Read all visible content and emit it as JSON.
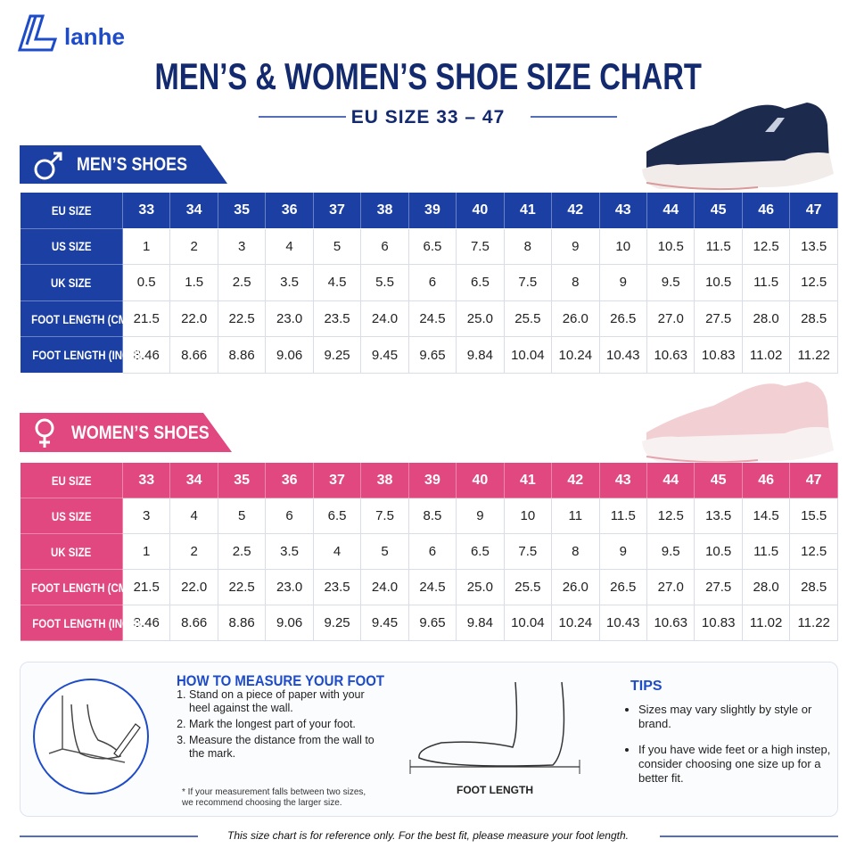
{
  "brand": "lanhe",
  "title": "MEN’S & WOMEN’S SHOE SIZE CHART",
  "subtitle": "EU SIZE 33 – 47",
  "men": {
    "label": "MEN’S SHOES",
    "rows": [
      {
        "header": "EU SIZE",
        "cells": [
          "33",
          "34",
          "35",
          "36",
          "37",
          "38",
          "39",
          "40",
          "41",
          "42",
          "43",
          "44",
          "45",
          "46",
          "47"
        ]
      },
      {
        "header": "US SIZE",
        "cells": [
          "1",
          "2",
          "3",
          "4",
          "5",
          "6",
          "6.5",
          "7.5",
          "8",
          "9",
          "10",
          "10.5",
          "11.5",
          "12.5",
          "13.5"
        ]
      },
      {
        "header": "UK SIZE",
        "cells": [
          "0.5",
          "1.5",
          "2.5",
          "3.5",
          "4.5",
          "5.5",
          "6",
          "6.5",
          "7.5",
          "8",
          "9",
          "9.5",
          "10.5",
          "11.5",
          "12.5"
        ]
      },
      {
        "header": "FOOT LENGTH (CM)",
        "cells": [
          "21.5",
          "22.0",
          "22.5",
          "23.0",
          "23.5",
          "24.0",
          "24.5",
          "25.0",
          "25.5",
          "26.0",
          "26.5",
          "27.0",
          "27.5",
          "28.0",
          "28.5"
        ]
      },
      {
        "header": "FOOT LENGTH (INCH)",
        "cells": [
          "8.46",
          "8.66",
          "8.86",
          "9.06",
          "9.25",
          "9.45",
          "9.65",
          "9.84",
          "10.04",
          "10.24",
          "10.43",
          "10.63",
          "10.83",
          "11.02",
          "11.22"
        ]
      }
    ]
  },
  "women": {
    "label": "WOMEN’S SHOES",
    "rows": [
      {
        "header": "EU SIZE",
        "cells": [
          "33",
          "34",
          "35",
          "36",
          "37",
          "38",
          "39",
          "40",
          "41",
          "42",
          "43",
          "44",
          "45",
          "46",
          "47"
        ]
      },
      {
        "header": "US SIZE",
        "cells": [
          "3",
          "4",
          "5",
          "6",
          "6.5",
          "7.5",
          "8.5",
          "9",
          "10",
          "11",
          "11.5",
          "12.5",
          "13.5",
          "14.5",
          "15.5"
        ]
      },
      {
        "header": "UK SIZE",
        "cells": [
          "1",
          "2",
          "2.5",
          "3.5",
          "4",
          "5",
          "6",
          "6.5",
          "7.5",
          "8",
          "9",
          "9.5",
          "10.5",
          "11.5",
          "12.5"
        ]
      },
      {
        "header": "FOOT LENGTH (CM)",
        "cells": [
          "21.5",
          "22.0",
          "22.5",
          "23.0",
          "23.5",
          "24.0",
          "24.5",
          "25.0",
          "25.5",
          "26.0",
          "26.5",
          "27.0",
          "27.5",
          "28.0",
          "28.5"
        ]
      },
      {
        "header": "FOOT LENGTH (INCH)",
        "cells": [
          "8.46",
          "8.66",
          "8.86",
          "9.06",
          "9.25",
          "9.45",
          "9.65",
          "9.84",
          "10.04",
          "10.24",
          "10.43",
          "10.63",
          "10.83",
          "11.02",
          "11.22"
        ]
      }
    ]
  },
  "measure": {
    "title": "HOW TO MEASURE YOUR FOOT",
    "steps": [
      "Stand on a piece of paper with your heel against the wall.",
      "Mark the longest part of your foot.",
      "Measure the distance from the wall to the mark."
    ],
    "note": "* If your measurement falls between two sizes, we recommend choosing the larger size.",
    "foot_label": "FOOT LENGTH"
  },
  "tips": {
    "title": "TIPS",
    "items": [
      "Sizes may vary slightly by style or brand.",
      "If you have wide feet or a high instep, consider choosing one size up for a better fit."
    ]
  },
  "footer": "This size chart is for reference only. For the best fit, please measure your foot length."
}
